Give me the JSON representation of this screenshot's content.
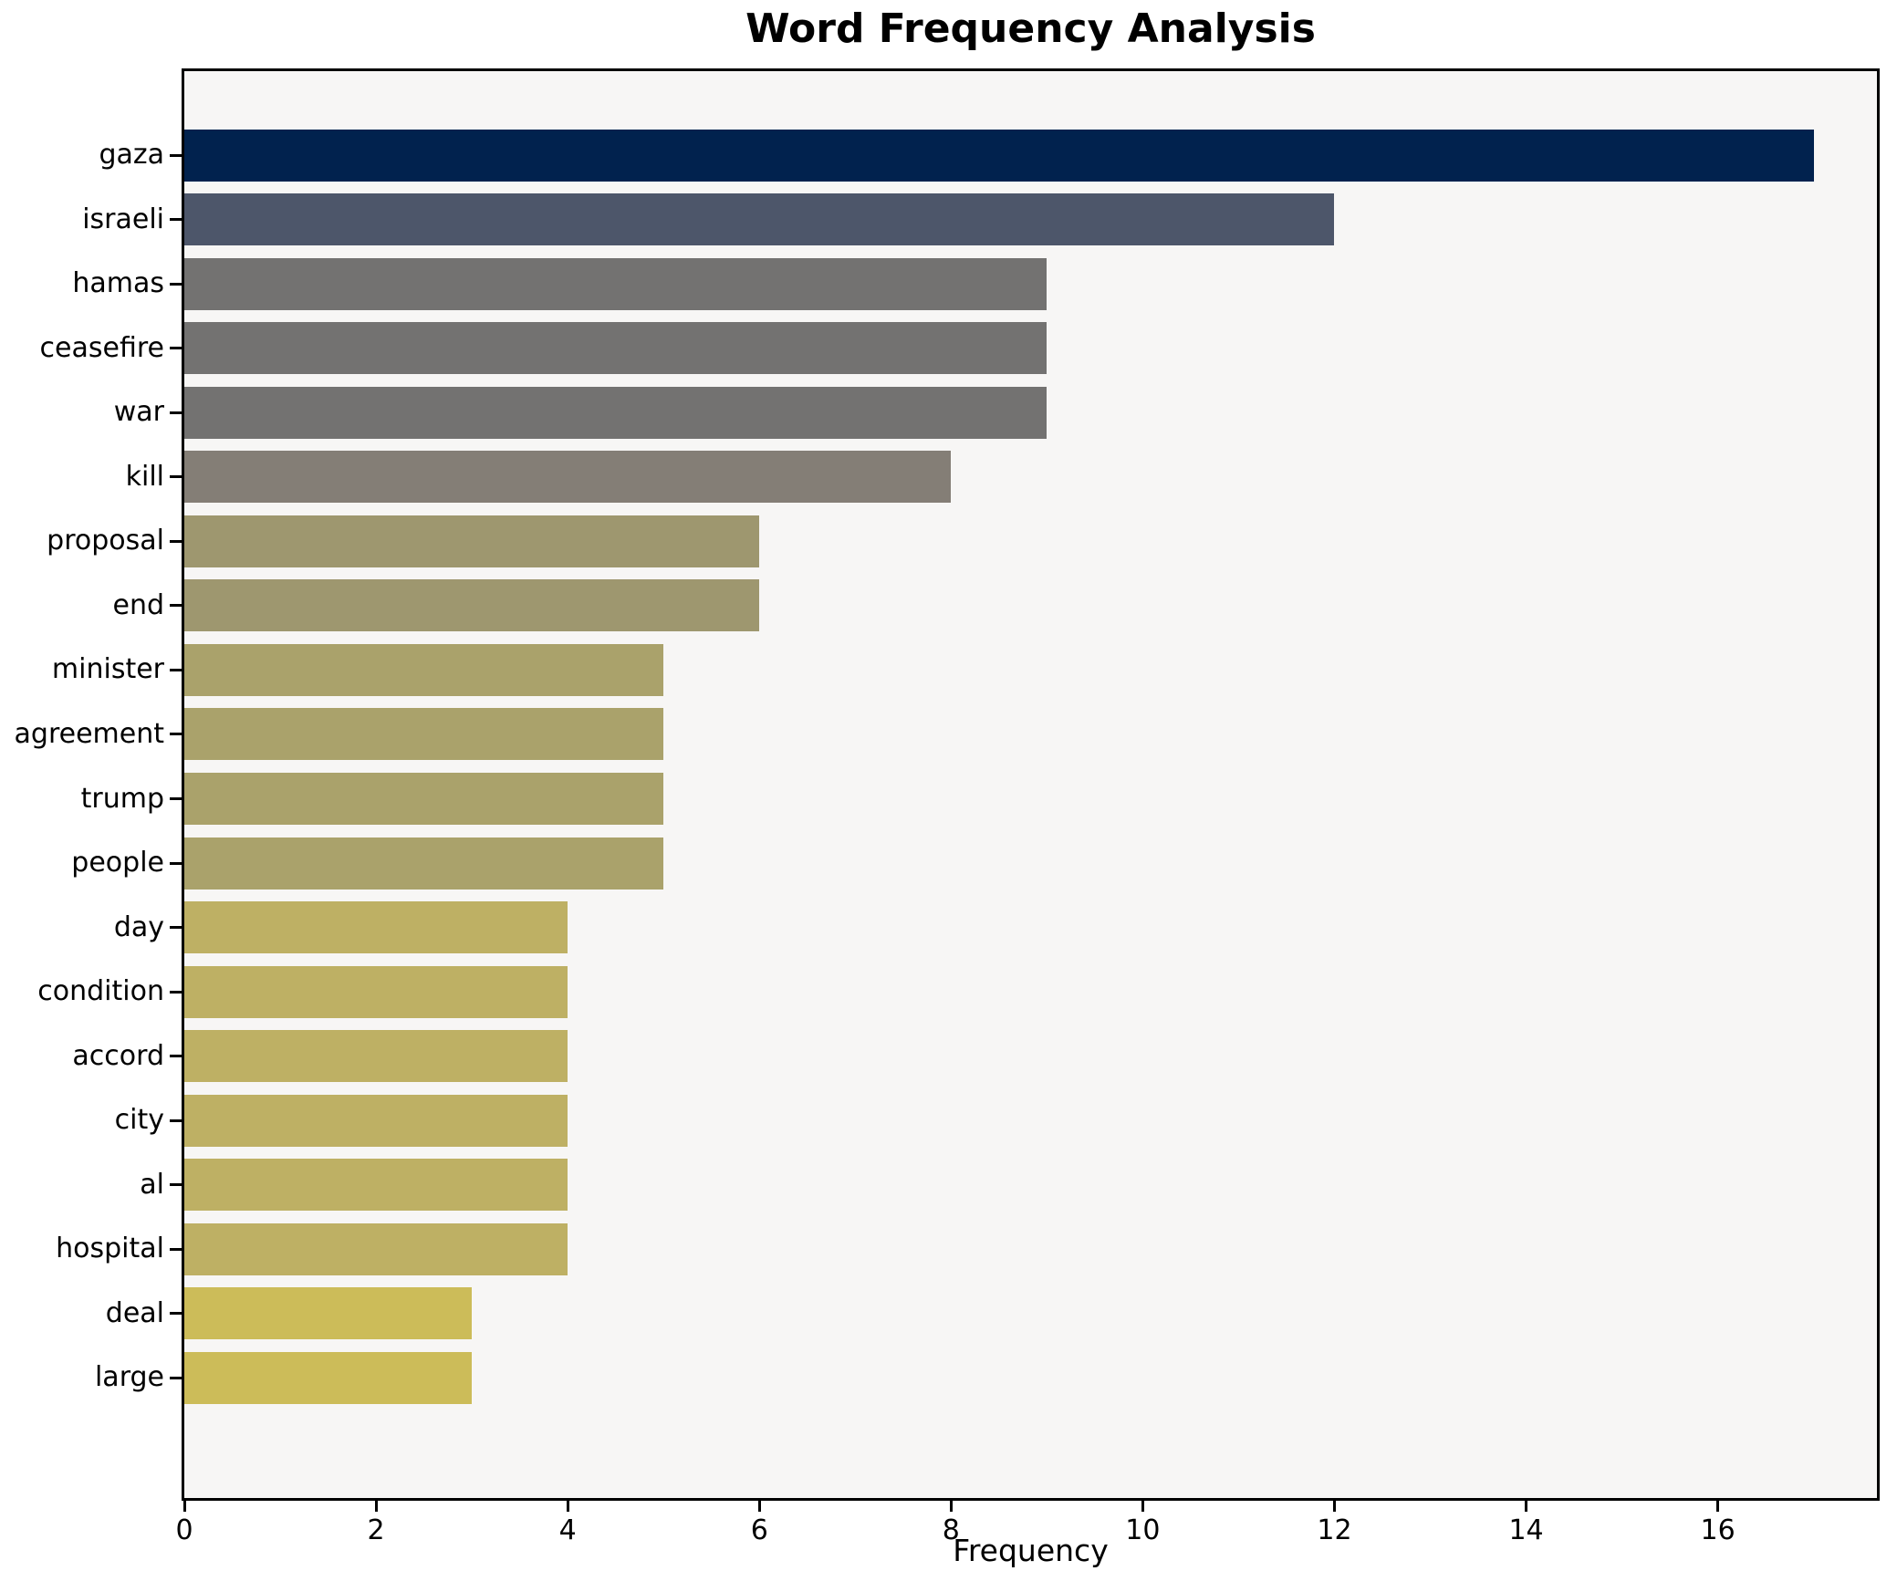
{
  "chart_data": {
    "type": "bar",
    "orientation": "horizontal",
    "title": "Word Frequency Analysis",
    "xlabel": "Frequency",
    "ylabel": "",
    "categories": [
      "gaza",
      "israeli",
      "hamas",
      "ceasefire",
      "war",
      "kill",
      "proposal",
      "end",
      "minister",
      "agreement",
      "trump",
      "people",
      "day",
      "condition",
      "accord",
      "city",
      "al",
      "hospital",
      "deal",
      "large"
    ],
    "values": [
      17,
      12,
      9,
      9,
      9,
      8,
      6,
      6,
      5,
      5,
      5,
      5,
      4,
      4,
      4,
      4,
      4,
      4,
      3,
      3
    ],
    "bar_colors": [
      "#01224e",
      "#4d566a",
      "#737271",
      "#737271",
      "#737271",
      "#847e76",
      "#9e976f",
      "#9e976f",
      "#aaa26b",
      "#aaa26b",
      "#aaa26b",
      "#aaa26b",
      "#beb064",
      "#beb064",
      "#beb064",
      "#beb064",
      "#beb064",
      "#beb064",
      "#ccbc59",
      "#ccbc59"
    ],
    "xlim": [
      0,
      17.66
    ],
    "xticks": [
      0,
      2,
      4,
      6,
      8,
      10,
      12,
      14,
      16
    ],
    "grid": false,
    "legend": null,
    "plot_background": "#f7f6f5",
    "figure_background": "#ffffff",
    "spine_color": "#000000",
    "text_color": "#000000"
  }
}
